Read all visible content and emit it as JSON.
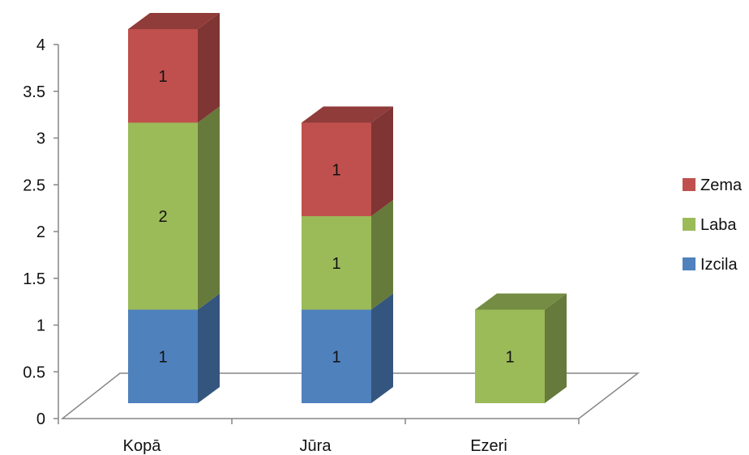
{
  "chart_data": {
    "type": "bar",
    "stacked": true,
    "three_d": true,
    "categories": [
      "Kopā",
      "Jūra",
      "Ezeri"
    ],
    "series": [
      {
        "name": "Izcila",
        "values": [
          1,
          1,
          0
        ],
        "color": "#4f81bd"
      },
      {
        "name": "Laba",
        "values": [
          2,
          1,
          1
        ],
        "color": "#9bbb59"
      },
      {
        "name": "Zema",
        "values": [
          1,
          1,
          0
        ],
        "color": "#c0504d"
      }
    ],
    "ylim": [
      0,
      4
    ],
    "yticks": [
      "0",
      "0.5",
      "1",
      "1.5",
      "2",
      "2.5",
      "3",
      "3.5",
      "4"
    ],
    "legend": {
      "position": "right",
      "order": [
        "Zema",
        "Laba",
        "Izcila"
      ]
    },
    "grid": false,
    "data_labels": true
  }
}
